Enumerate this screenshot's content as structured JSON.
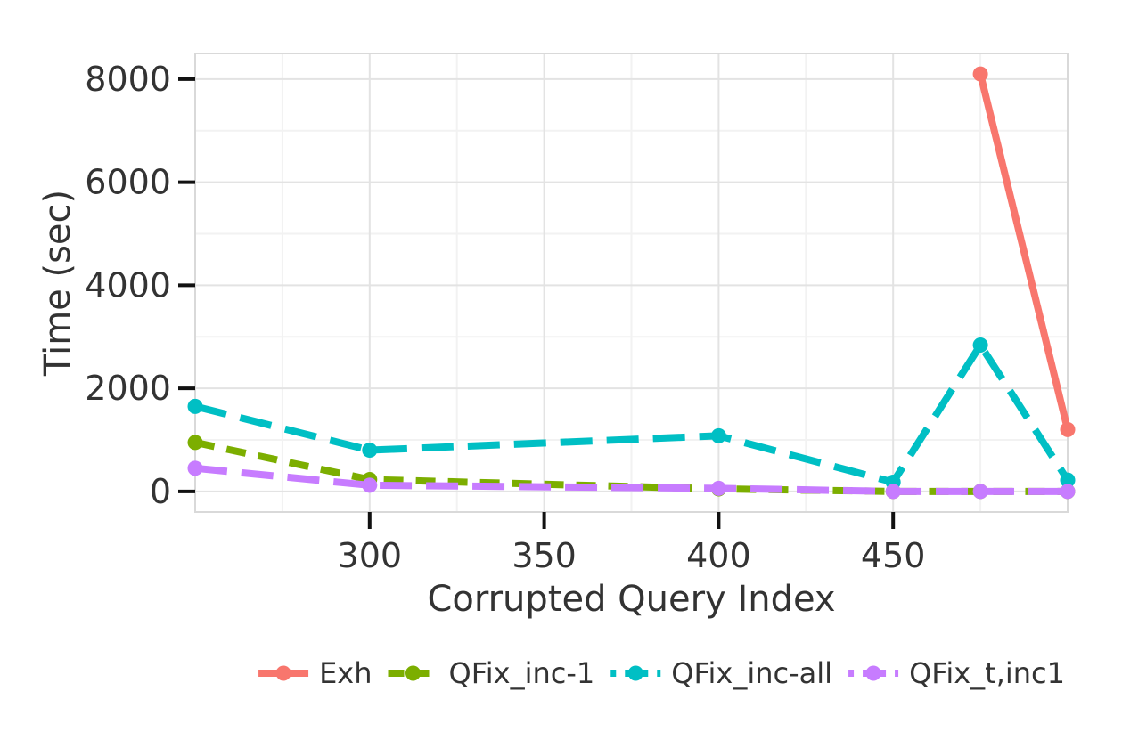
{
  "chart_data": {
    "type": "line",
    "title": "",
    "xlabel": "Corrupted Query Index",
    "ylabel": "Time (sec)",
    "xlim": [
      250,
      500
    ],
    "ylim": [
      -400,
      8500
    ],
    "xticks": [
      300,
      350,
      400,
      450
    ],
    "yticks": [
      0,
      2000,
      4000,
      6000,
      8000
    ],
    "grid": true,
    "legend_position": "bottom",
    "series": [
      {
        "name": "Exh",
        "color": "#F8766D",
        "dash": "solid",
        "x": [
          475,
          500
        ],
        "y": [
          8100,
          1200
        ]
      },
      {
        "name": "QFix_inc-1",
        "color": "#7CAE00",
        "dash": "dashed",
        "x": [
          250,
          300,
          400,
          450,
          475,
          500
        ],
        "y": [
          950,
          230,
          50,
          0,
          0,
          0
        ]
      },
      {
        "name": "QFix_inc-all",
        "color": "#00BFC4",
        "dash": "longdash",
        "x": [
          250,
          300,
          400,
          450,
          475,
          500
        ],
        "y": [
          1650,
          800,
          1080,
          180,
          2840,
          220
        ]
      },
      {
        "name": "QFix_t,inc1",
        "color": "#C77CFF",
        "dash": "longdash",
        "x": [
          250,
          300,
          400,
          450,
          475,
          500
        ],
        "y": [
          450,
          120,
          60,
          0,
          0,
          0
        ]
      }
    ]
  }
}
